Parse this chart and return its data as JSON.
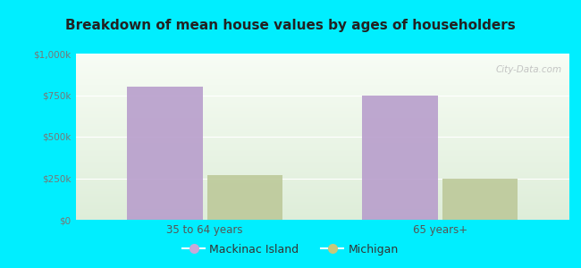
{
  "title": "Breakdown of mean house values by ages of householders",
  "categories": [
    "35 to 64 years",
    "65 years+"
  ],
  "series": {
    "Mackinac Island": [
      800000,
      750000
    ],
    "Michigan": [
      270000,
      245000
    ]
  },
  "bar_colors": {
    "Mackinac Island": "#b89ecc",
    "Michigan": "#bdc99a"
  },
  "legend_colors": {
    "Mackinac Island": "#c9a8d8",
    "Michigan": "#c8c87a"
  },
  "ylim": [
    0,
    1000000
  ],
  "yticks": [
    0,
    250000,
    500000,
    750000,
    1000000
  ],
  "ytick_labels": [
    "$0",
    "$250k",
    "$500k",
    "$750k",
    "$1,000k"
  ],
  "background_outer": "#00eeff",
  "watermark": "City-Data.com",
  "bar_width": 0.32,
  "group_positions": [
    0.0,
    1.0
  ]
}
